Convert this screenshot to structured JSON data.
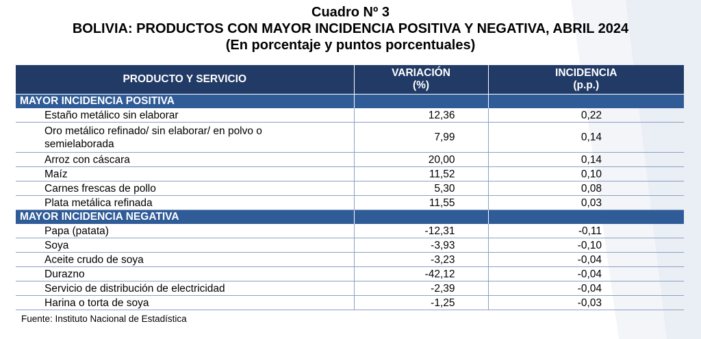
{
  "title": {
    "line1": "Cuadro Nº 3",
    "line2": "BOLIVIA: PRODUCTOS CON MAYOR INCIDENCIA POSITIVA Y NEGATIVA, ABRIL 2024",
    "line3": "(En porcentaje y puntos porcentuales)"
  },
  "table": {
    "headers": {
      "product": "PRODUCTO Y SERVICIO",
      "variation_line1": "VARIACIÓN",
      "variation_line2": "(%)",
      "incidence_line1": "INCIDENCIA",
      "incidence_line2": "(p.p.)"
    },
    "positive": {
      "label": "MAYOR INCIDENCIA POSITIVA",
      "rows": [
        {
          "product": "Estaño metálico sin elaborar",
          "variation": "12,36",
          "incidence": "0,22"
        },
        {
          "product_line1": "Oro metálico refinado/ sin elaborar/ en polvo o",
          "product_line2": "semielaborada",
          "variation": "7,99",
          "incidence": "0,14"
        },
        {
          "product": "Arroz con cáscara",
          "variation": "20,00",
          "incidence": "0,14"
        },
        {
          "product": "Maíz",
          "variation": "11,52",
          "incidence": "0,10"
        },
        {
          "product": "Carnes frescas de pollo",
          "variation": "5,30",
          "incidence": "0,08"
        },
        {
          "product": "Plata metálica refinada",
          "variation": "11,55",
          "incidence": "0,03"
        }
      ]
    },
    "negative": {
      "label": "MAYOR INCIDENCIA NEGATIVA",
      "rows": [
        {
          "product": "Papa (patata)",
          "variation": "-12,31",
          "incidence": "-0,11"
        },
        {
          "product": "Soya",
          "variation": "-3,93",
          "incidence": "-0,10"
        },
        {
          "product": "Aceite crudo de soya",
          "variation": "-3,23",
          "incidence": "-0,04"
        },
        {
          "product": "Durazno",
          "variation": "-42,12",
          "incidence": "-0,04"
        },
        {
          "product": "Servicio de distribución de electricidad",
          "variation": "-2,39",
          "incidence": "-0,04"
        },
        {
          "product": "Harina o torta de soya",
          "variation": "-1,25",
          "incidence": "-0,03"
        }
      ]
    }
  },
  "source": "Fuente: Instituto Nacional de Estadística",
  "colors": {
    "header_bg": "#213A66",
    "section_bg": "#2F5B97",
    "row_border": "#8aa0c2"
  }
}
